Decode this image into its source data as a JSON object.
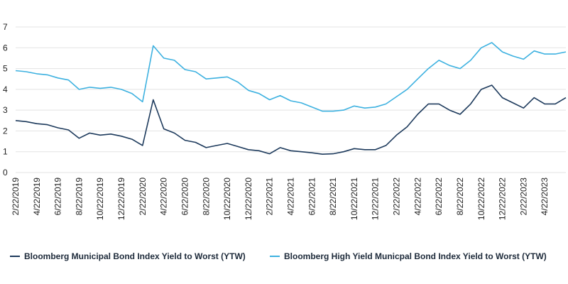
{
  "chart_data": {
    "type": "line",
    "categories": [
      "2/22/2019",
      null,
      "4/22/2019",
      null,
      "6/22/2019",
      null,
      "8/22/2019",
      null,
      "10/22/2019",
      null,
      "12/22/2019",
      null,
      "2/22/2020",
      null,
      "4/22/2020",
      null,
      "6/22/2020",
      null,
      "8/22/2020",
      null,
      "10/22/2020",
      null,
      "12/22/2020",
      null,
      "2/22/2021",
      null,
      "4/22/2021",
      null,
      "6/22/2021",
      null,
      "8/22/2021",
      null,
      "10/22/2021",
      null,
      "12/22/2021",
      null,
      "2/22/2022",
      null,
      "4/22/2022",
      null,
      "6/22/2022",
      null,
      "8/22/2022",
      null,
      "10/22/2022",
      null,
      "12/22/2022",
      null,
      "2/22/2023",
      null,
      "4/22/2023",
      null,
      null
    ],
    "series": [
      {
        "name": "Bloomberg Municipal Bond Index Yield to Worst (YTW)",
        "color": "#1d3a5c",
        "values": [
          2.5,
          2.45,
          2.35,
          2.3,
          2.15,
          2.05,
          1.65,
          1.9,
          1.8,
          1.85,
          1.75,
          1.6,
          1.3,
          3.5,
          2.1,
          1.9,
          1.55,
          1.45,
          1.2,
          1.3,
          1.4,
          1.25,
          1.1,
          1.05,
          0.9,
          1.2,
          1.05,
          1.0,
          0.95,
          0.88,
          0.9,
          1.0,
          1.15,
          1.1,
          1.1,
          1.3,
          1.8,
          2.2,
          2.8,
          3.3,
          3.3,
          3.0,
          2.8,
          3.3,
          4.0,
          4.2,
          3.6,
          3.35,
          3.1,
          3.6,
          3.3,
          3.3,
          3.6
        ]
      },
      {
        "name": "Bloomberg High Yield Municpal Bond Index Yield to Worst (YTW)",
        "color": "#3db1e0",
        "values": [
          4.9,
          4.85,
          4.75,
          4.7,
          4.55,
          4.45,
          4.0,
          4.1,
          4.05,
          4.1,
          4.0,
          3.8,
          3.4,
          6.1,
          5.5,
          5.4,
          4.95,
          4.85,
          4.5,
          4.55,
          4.6,
          4.35,
          3.95,
          3.8,
          3.5,
          3.7,
          3.45,
          3.35,
          3.15,
          2.95,
          2.95,
          3.0,
          3.2,
          3.1,
          3.15,
          3.3,
          3.65,
          4.0,
          4.5,
          5.0,
          5.4,
          5.15,
          5.0,
          5.4,
          6.0,
          6.25,
          5.8,
          5.6,
          5.45,
          5.85,
          5.7,
          5.7,
          5.8
        ]
      }
    ],
    "ylim": [
      0,
      7
    ],
    "yticks": [
      0,
      1,
      2,
      3,
      4,
      5,
      6,
      7
    ],
    "grid": true
  }
}
